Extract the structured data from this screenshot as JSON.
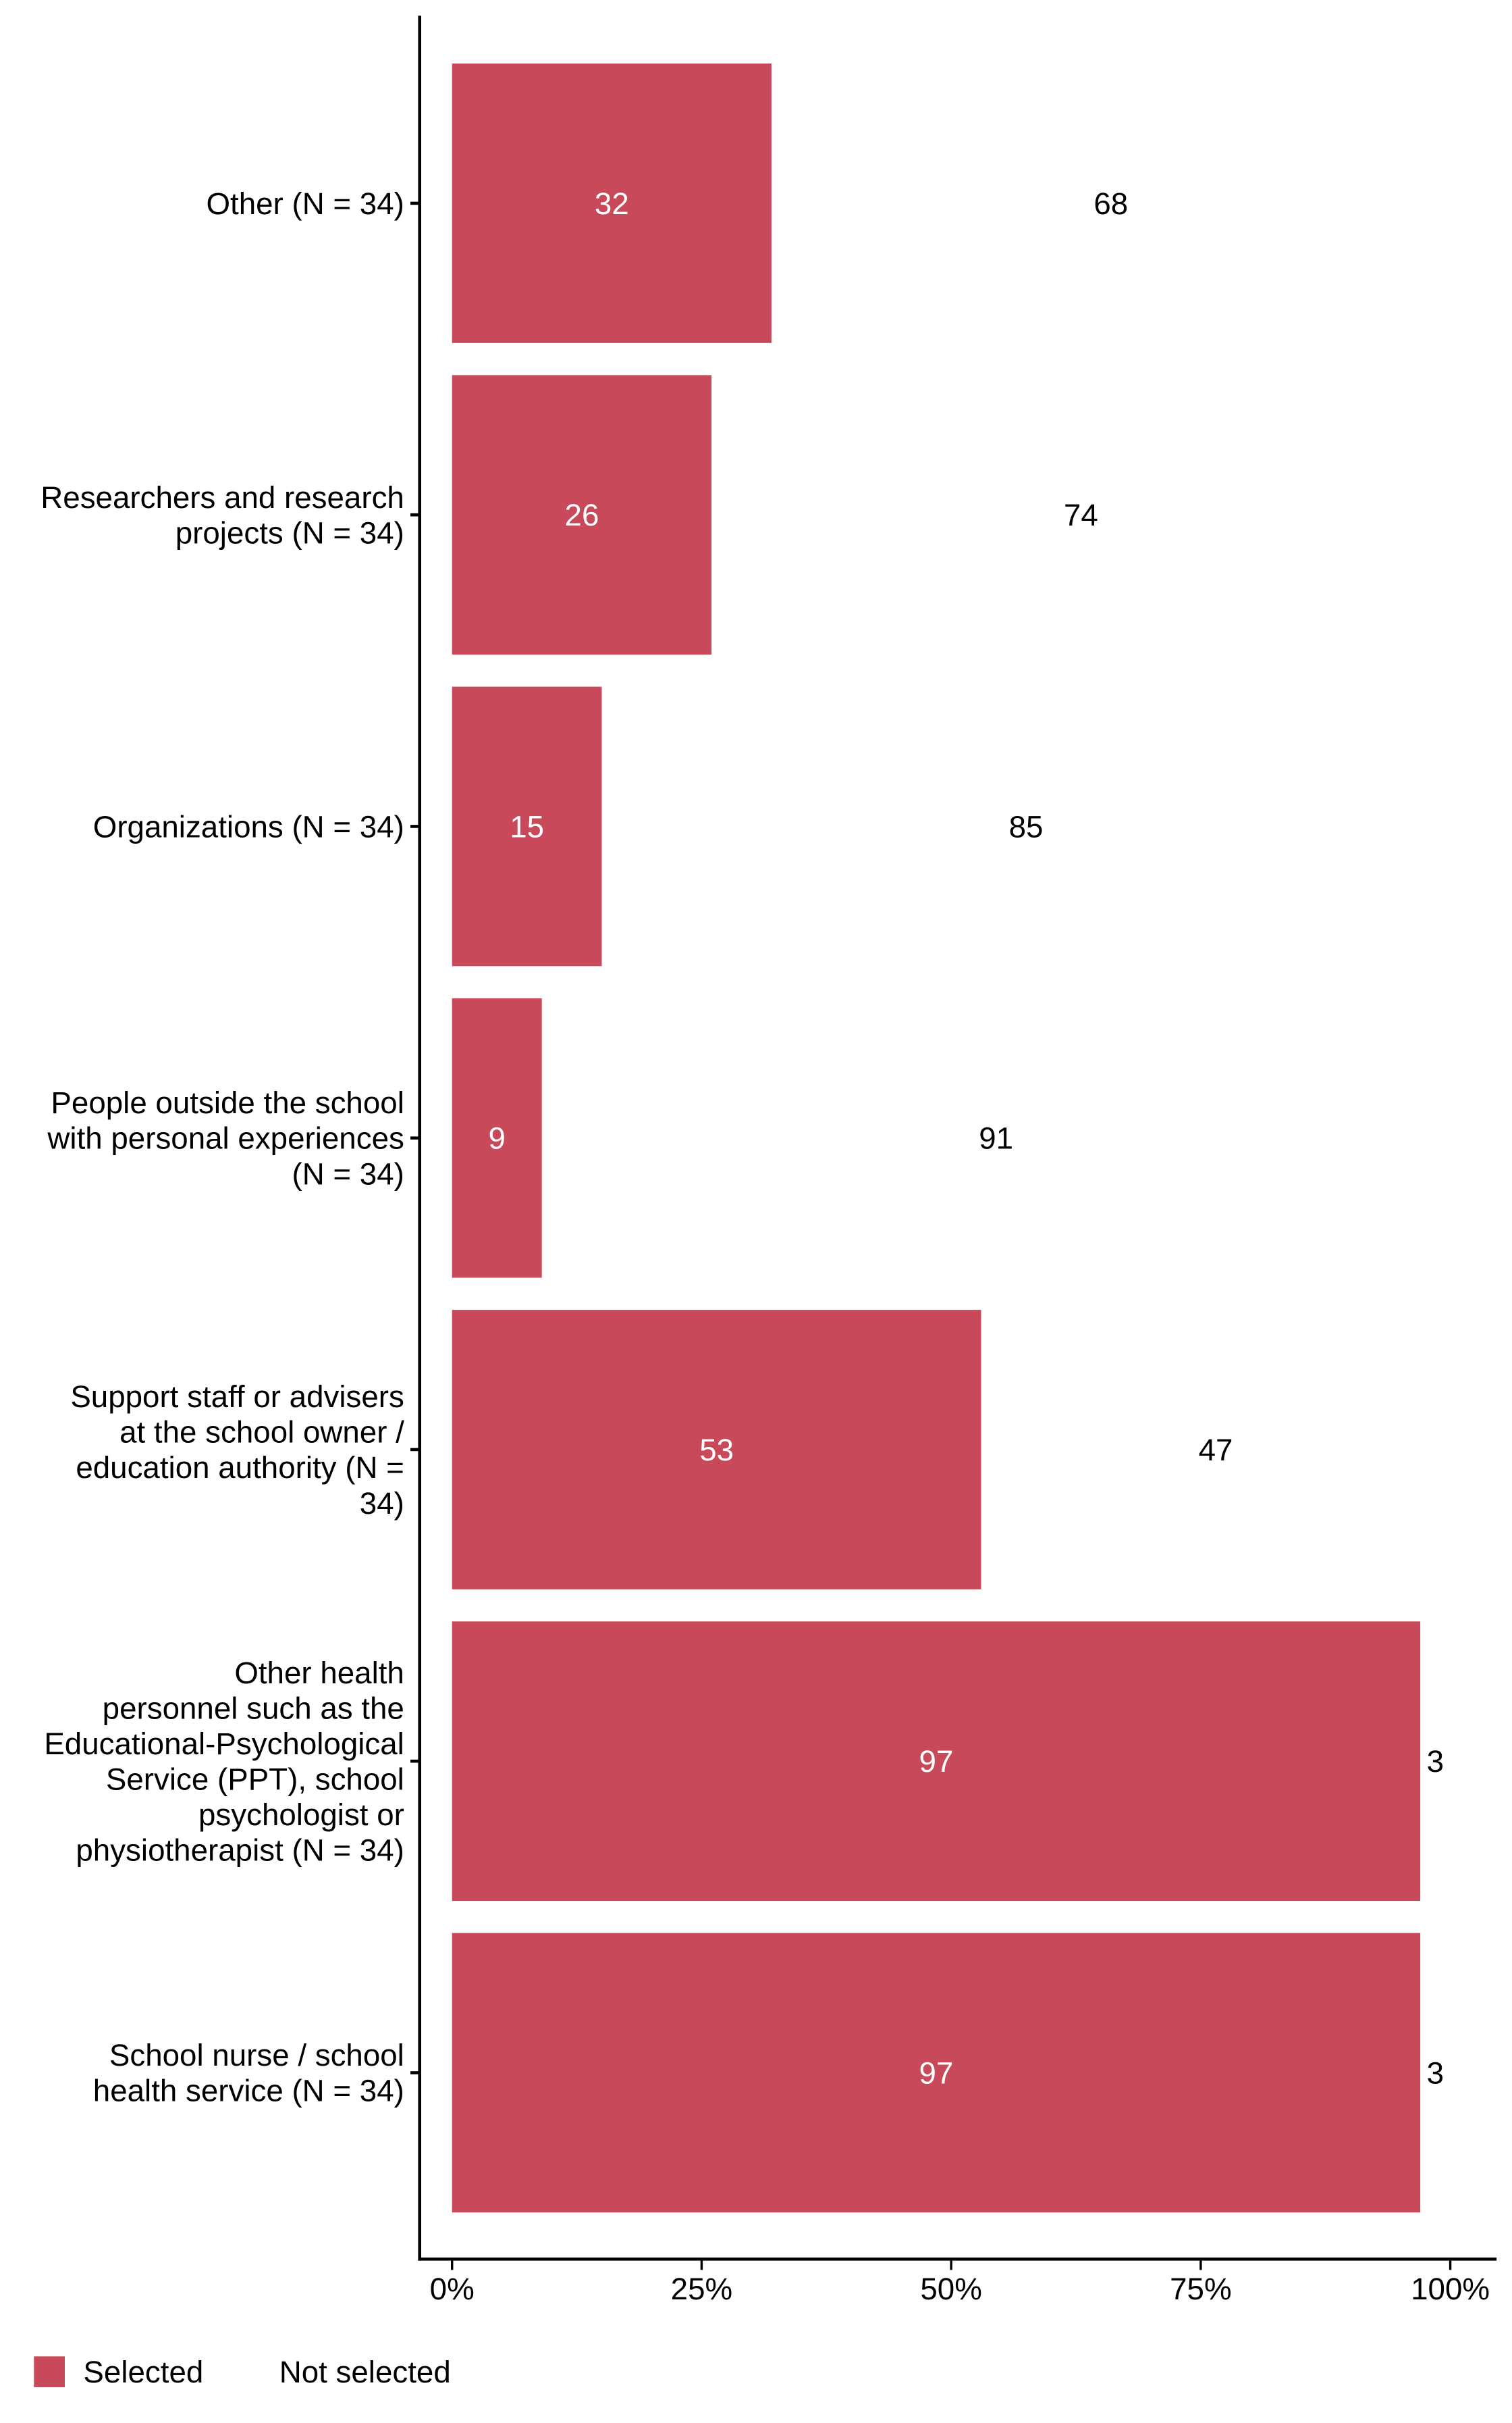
{
  "chart_data": {
    "type": "bar",
    "orientation": "horizontal",
    "stacked": true,
    "title": "",
    "xlabel": "",
    "ylabel": "",
    "xlim": [
      0,
      100
    ],
    "x_ticks": [
      "0%",
      "25%",
      "50%",
      "75%",
      "100%"
    ],
    "grid": false,
    "legend_position": "bottom-left",
    "categories": [
      [
        "Other (N = 34)"
      ],
      [
        "Researchers and research",
        "projects (N = 34)"
      ],
      [
        "Organizations (N = 34)"
      ],
      [
        "People outside the school",
        "with personal experiences",
        "(N = 34)"
      ],
      [
        "Support staff or advisers",
        "at the school owner /",
        "education authority (N =",
        "34)"
      ],
      [
        "Other health",
        "personnel such as the",
        "Educational-Psychological",
        "Service (PPT), school",
        "psychologist or",
        "physiotherapist (N = 34)"
      ],
      [
        "School nurse / school",
        "health service (N = 34)"
      ]
    ],
    "series": [
      {
        "name": "Selected",
        "color": "#C84A5A",
        "values": [
          32,
          26,
          15,
          9,
          53,
          97,
          97
        ]
      },
      {
        "name": "Not selected",
        "color": "#FFFFFF",
        "values": [
          68,
          74,
          85,
          91,
          47,
          3,
          3
        ]
      }
    ]
  }
}
